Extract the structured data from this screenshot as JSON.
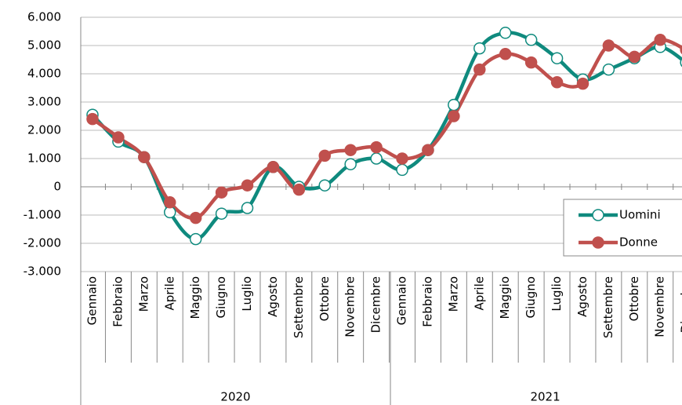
{
  "chart_data": {
    "type": "line",
    "categories": [
      "Gennaio",
      "Febbraio",
      "Marzo",
      "Aprile",
      "Maggio",
      "Giugno",
      "Luglio",
      "Agosto",
      "Settembre",
      "Ottobre",
      "Novembre",
      "Dicembre",
      "Gennaio",
      "Febbraio",
      "Marzo",
      "Aprile",
      "Maggio",
      "Giugno",
      "Luglio",
      "Agosto",
      "Settembre",
      "Ottobre",
      "Novembre",
      "Dicembre"
    ],
    "category_groups": [
      "2020",
      "2021"
    ],
    "series": [
      {
        "name": "Uomini",
        "color": "#0f8a7e",
        "marker": "hollow",
        "values": [
          2550,
          1600,
          1050,
          -900,
          -1850,
          -950,
          -750,
          700,
          0,
          50,
          800,
          1000,
          600,
          1300,
          2900,
          4900,
          5450,
          5200,
          4550,
          3800,
          4150,
          4550,
          4950,
          4400
        ]
      },
      {
        "name": "Donne",
        "color": "#c0504d",
        "marker": "filled",
        "values": [
          2400,
          1750,
          1050,
          -550,
          -1100,
          -200,
          50,
          700,
          -100,
          1100,
          1300,
          1400,
          1000,
          1300,
          2500,
          4150,
          4700,
          4400,
          3700,
          3650,
          5000,
          4600,
          5200,
          4850
        ]
      }
    ],
    "ylim": [
      -3000,
      6000
    ],
    "yticks": [
      {
        "value": -3000,
        "label": "-3.000"
      },
      {
        "value": -2000,
        "label": "-2.000"
      },
      {
        "value": -1000,
        "label": "-1.000"
      },
      0,
      {
        "value": 1000,
        "label": "1.000"
      },
      {
        "value": 2000,
        "label": "2.000"
      },
      {
        "value": 3000,
        "label": "3.000"
      },
      {
        "value": 4000,
        "label": "4.000"
      },
      {
        "value": 5000,
        "label": "5.000"
      },
      {
        "value": 6000,
        "label": "6.000"
      }
    ],
    "grid": true,
    "legend": "right"
  }
}
